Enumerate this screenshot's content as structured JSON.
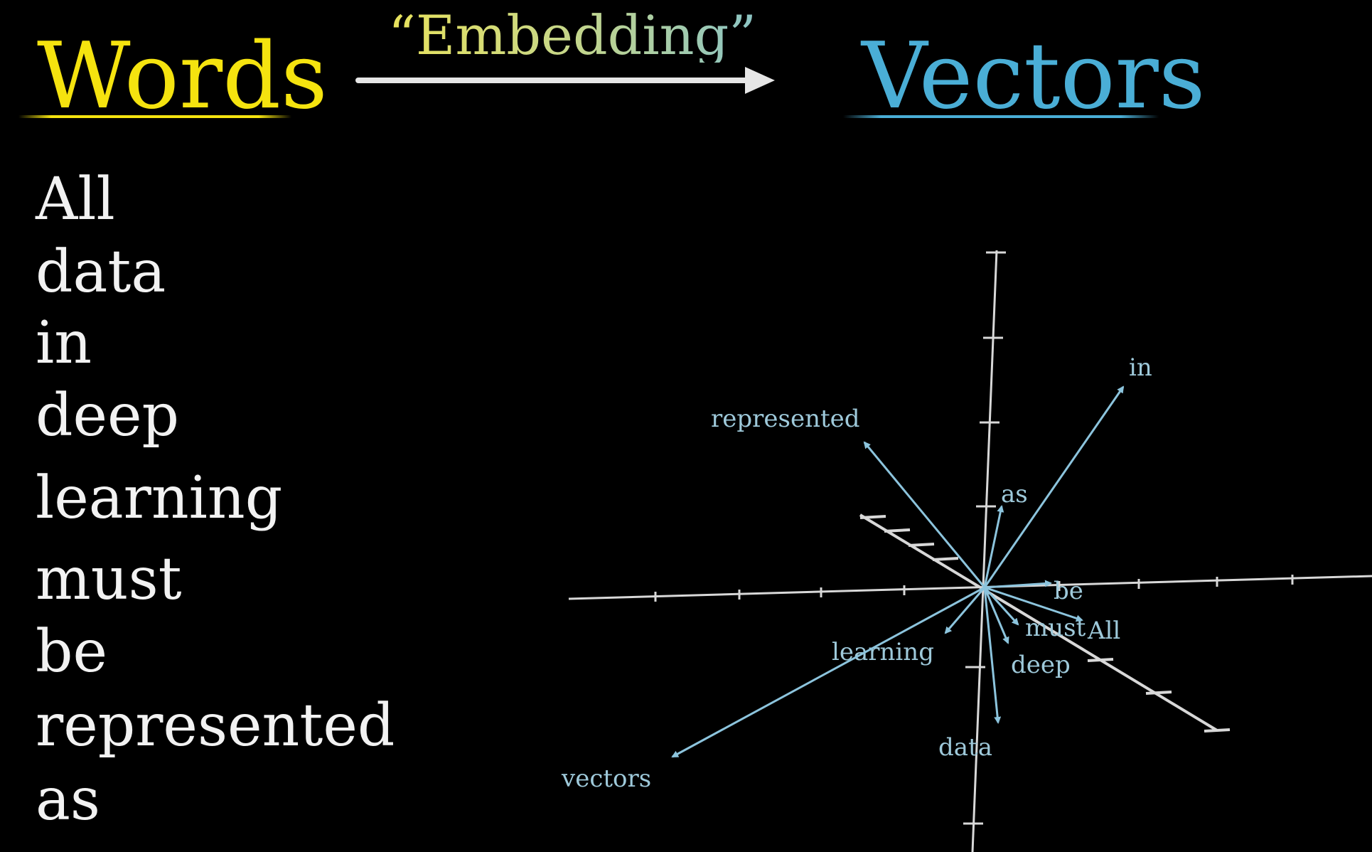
{
  "header": {
    "left_title": "Words",
    "arrow_label": "“Embedding”",
    "right_title": "Vectors"
  },
  "colors": {
    "words": "#f5e30f",
    "vectors": "#4aaed6",
    "vector_arrows": "#8cc4dd",
    "axes": "#d8d8d8",
    "background": "#000000"
  },
  "word_list": [
    "All",
    "data",
    "in",
    "deep",
    "learning",
    "must",
    "be",
    "represented",
    "as"
  ],
  "vector_plot": {
    "vectors": [
      {
        "label": "in"
      },
      {
        "label": "represented"
      },
      {
        "label": "as"
      },
      {
        "label": "be"
      },
      {
        "label": "must"
      },
      {
        "label": "All"
      },
      {
        "label": "learning"
      },
      {
        "label": "deep"
      },
      {
        "label": "data"
      },
      {
        "label": "vectors"
      }
    ]
  }
}
